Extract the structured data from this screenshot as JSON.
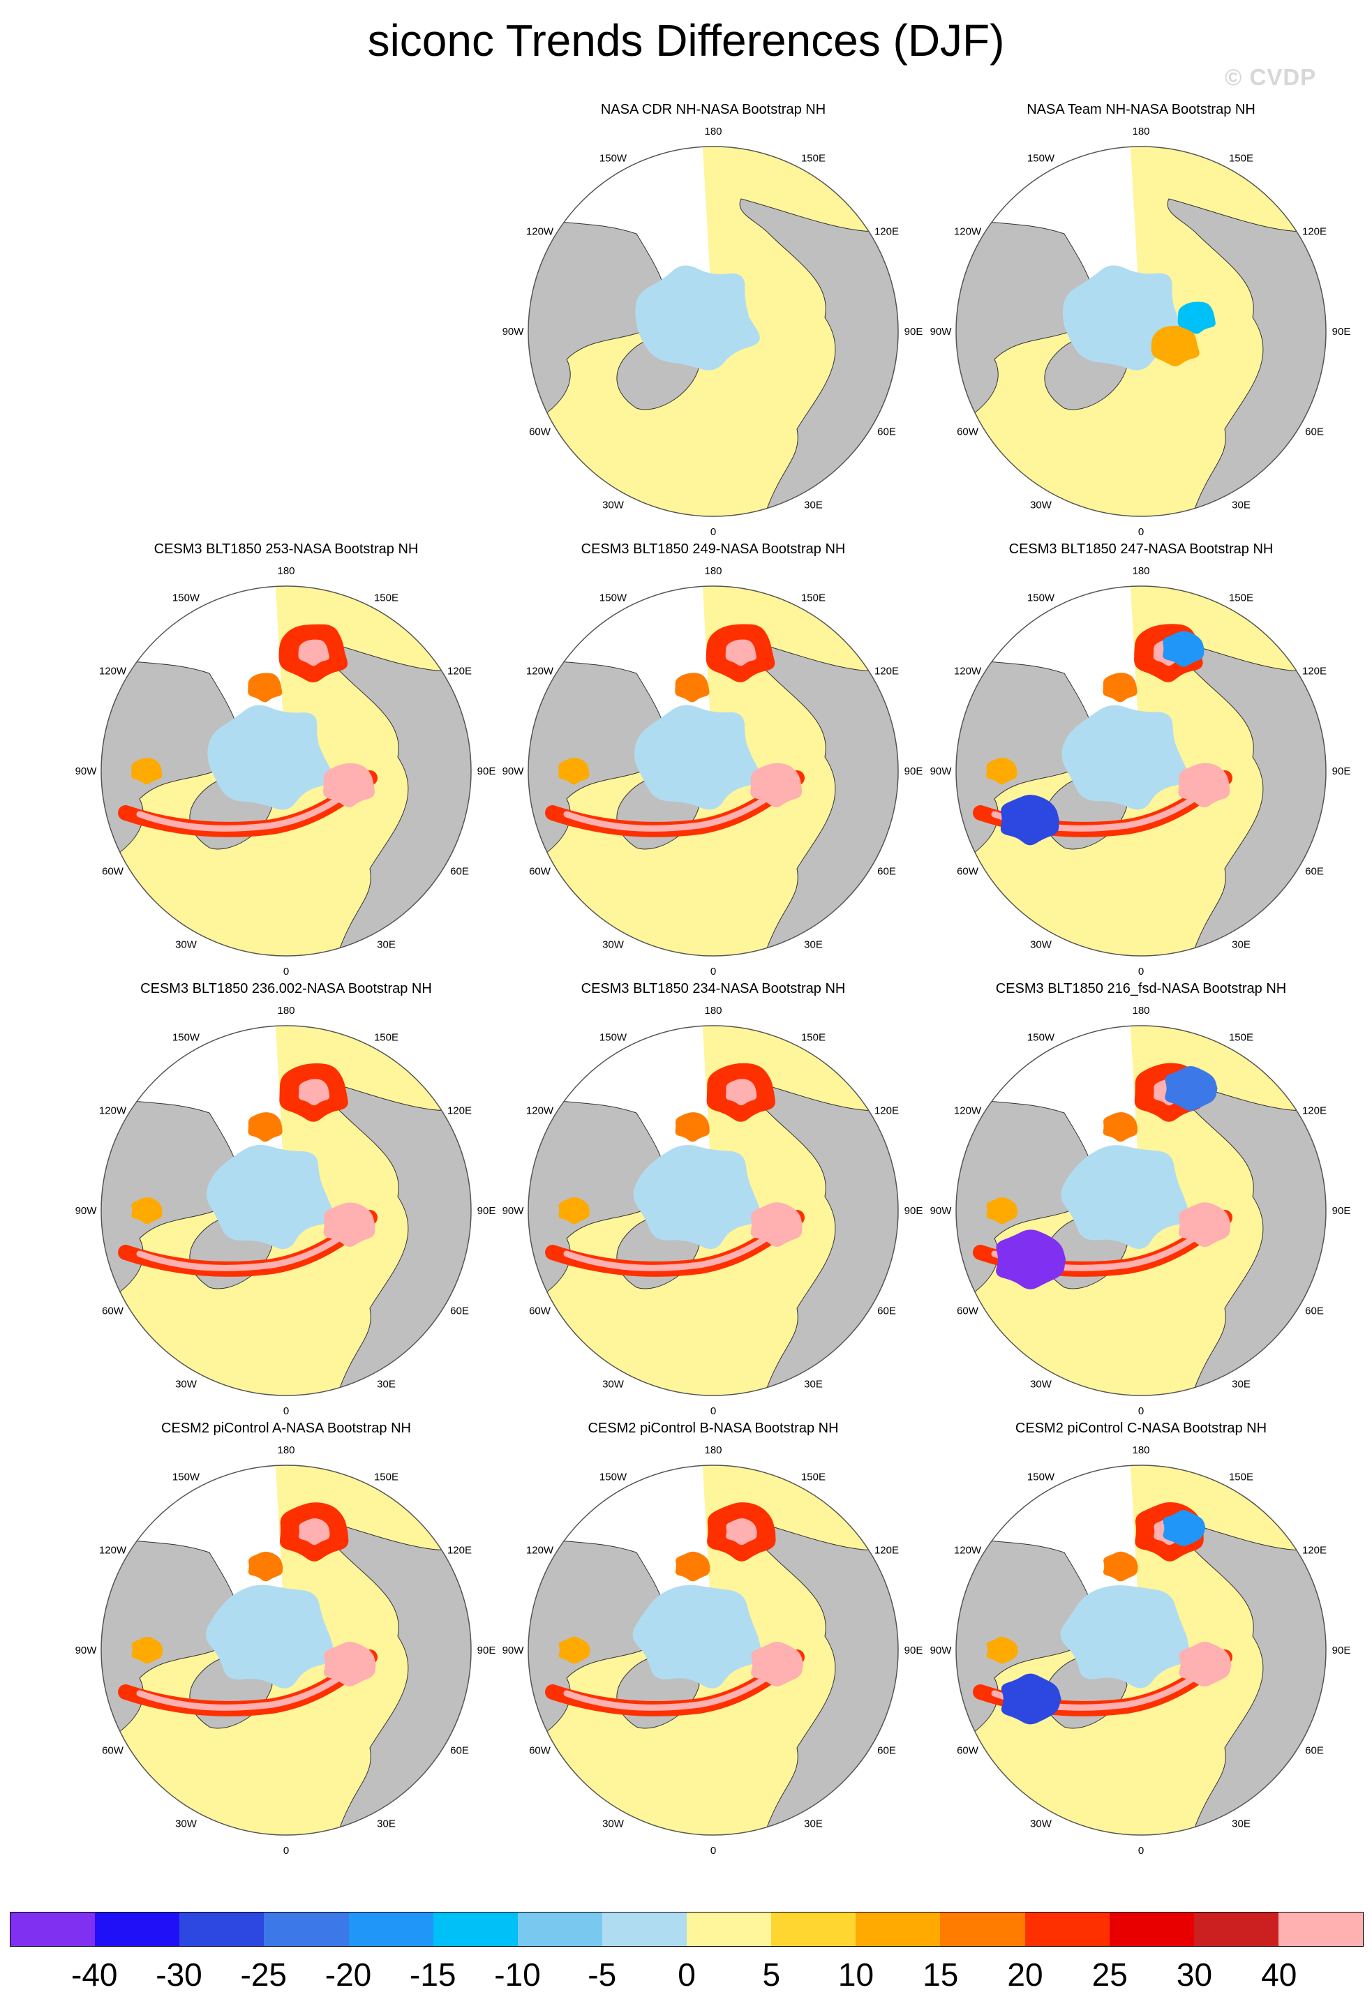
{
  "title": "siconc Trends Differences (DJF)",
  "watermark": "© CVDP",
  "map": {
    "longitude_labels": [
      "180",
      "150E",
      "120E",
      "90E",
      "60E",
      "30E",
      "0",
      "30W",
      "60W",
      "90W",
      "120W",
      "150W"
    ],
    "colors": {
      "land": "#bfbfbf",
      "no_data": "#ffffff",
      "zero_band": "#fff59a",
      "light_blue": "#b0dcf2"
    }
  },
  "panels": [
    {
      "title": "NASA CDR NH-NASA Bootstrap NH",
      "style": "obs-cdr"
    },
    {
      "title": "NASA Team NH-NASA Bootstrap NH",
      "style": "obs-team"
    },
    {
      "title": "CESM3 BLT1850 253-NASA Bootstrap NH",
      "style": "model-warm"
    },
    {
      "title": "CESM3 BLT1850 249-NASA Bootstrap NH",
      "style": "model-warm"
    },
    {
      "title": "CESM3 BLT1850 247-NASA Bootstrap NH",
      "style": "model-mixed"
    },
    {
      "title": "CESM3 BLT1850 236.002-NASA Bootstrap NH",
      "style": "model-warm"
    },
    {
      "title": "CESM3 BLT1850 234-NASA Bootstrap NH",
      "style": "model-warm"
    },
    {
      "title": "CESM3 BLT1850 216_fsd-NASA Bootstrap NH",
      "style": "model-strongblue"
    },
    {
      "title": "CESM2 piControl A-NASA Bootstrap NH",
      "style": "model-warm"
    },
    {
      "title": "CESM2 piControl B-NASA Bootstrap NH",
      "style": "model-warm"
    },
    {
      "title": "CESM2 piControl C-NASA Bootstrap NH",
      "style": "model-mixed"
    }
  ],
  "colorbar": {
    "colors": [
      "#8030f0",
      "#2010f8",
      "#2c48e0",
      "#3c78e8",
      "#2096f8",
      "#00c0f8",
      "#78c8f0",
      "#b0dcf2",
      "#fff59a",
      "#ffd530",
      "#ffaa00",
      "#ff7c00",
      "#ff3000",
      "#e80000",
      "#cc2020",
      "#ffb0b0"
    ],
    "labels": [
      "-40",
      "-30",
      "-25",
      "-20",
      "-15",
      "-10",
      "-5",
      "0",
      "5",
      "10",
      "15",
      "20",
      "25",
      "30",
      "40"
    ]
  }
}
